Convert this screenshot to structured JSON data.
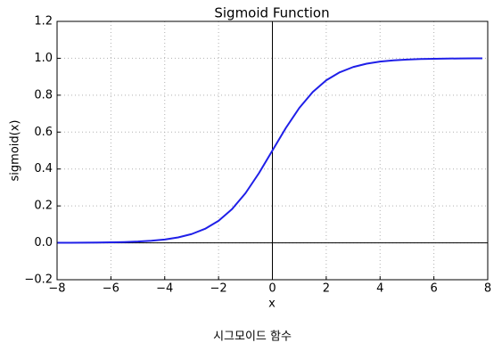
{
  "chart_data": {
    "type": "line",
    "title": "Sigmoid Function",
    "xlabel": "x",
    "ylabel": "sigmoid(x)",
    "caption": "시그모이드 함수",
    "x": [
      -8,
      -7.5,
      -7,
      -6.5,
      -6,
      -5.5,
      -5,
      -4.5,
      -4,
      -3.5,
      -3,
      -2.5,
      -2,
      -1.5,
      -1,
      -0.5,
      0,
      0.5,
      1,
      1.5,
      2,
      2.5,
      3,
      3.5,
      4,
      4.5,
      5,
      5.5,
      6,
      6.5,
      7,
      7.5,
      7.8
    ],
    "series": [
      {
        "name": "sigmoid",
        "color": "#1f1fe8",
        "values": [
          0.0003,
          0.0006,
          0.0009,
          0.0015,
          0.0025,
          0.0041,
          0.0067,
          0.011,
          0.018,
          0.0293,
          0.0474,
          0.0759,
          0.1192,
          0.1824,
          0.2689,
          0.3775,
          0.5,
          0.6225,
          0.7311,
          0.8176,
          0.8808,
          0.9241,
          0.9526,
          0.9707,
          0.982,
          0.989,
          0.9933,
          0.9959,
          0.9975,
          0.9985,
          0.9991,
          0.9994,
          0.9996
        ]
      }
    ],
    "xlim": [
      -8,
      8
    ],
    "ylim": [
      -0.2,
      1.2
    ],
    "xticks": [
      {
        "value": -8,
        "label": "−8"
      },
      {
        "value": -6,
        "label": "−6"
      },
      {
        "value": -4,
        "label": "−4"
      },
      {
        "value": -2,
        "label": "−2"
      },
      0,
      2,
      4,
      6,
      8
    ],
    "yticks": [
      {
        "value": -0.2,
        "label": "−0.2"
      },
      {
        "value": 0,
        "label": "0.0"
      },
      0.2,
      0.4,
      0.6,
      0.8,
      {
        "value": 1,
        "label": "1.0"
      },
      1.2
    ],
    "grid": true
  }
}
